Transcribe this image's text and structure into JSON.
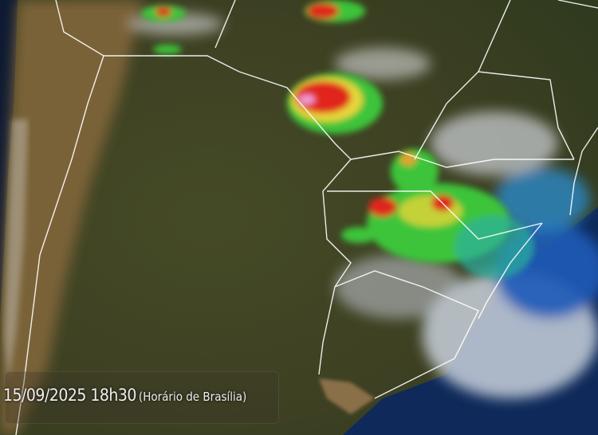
{
  "timestamp": {
    "datetime": "15/09/2025 18h30",
    "timezone": "(Horário de Brasília)"
  },
  "colors": {
    "ocean": "#0d1a30",
    "land": "#4a4626",
    "cloud_cold": "#ffffff",
    "storm_green": "#3ec43a",
    "storm_yellow": "#e6d63a",
    "storm_red": "#e0281e",
    "storm_pink": "#f0a0d8",
    "cloud_blue": "#1e5bb8",
    "borders": "#ffffff"
  }
}
